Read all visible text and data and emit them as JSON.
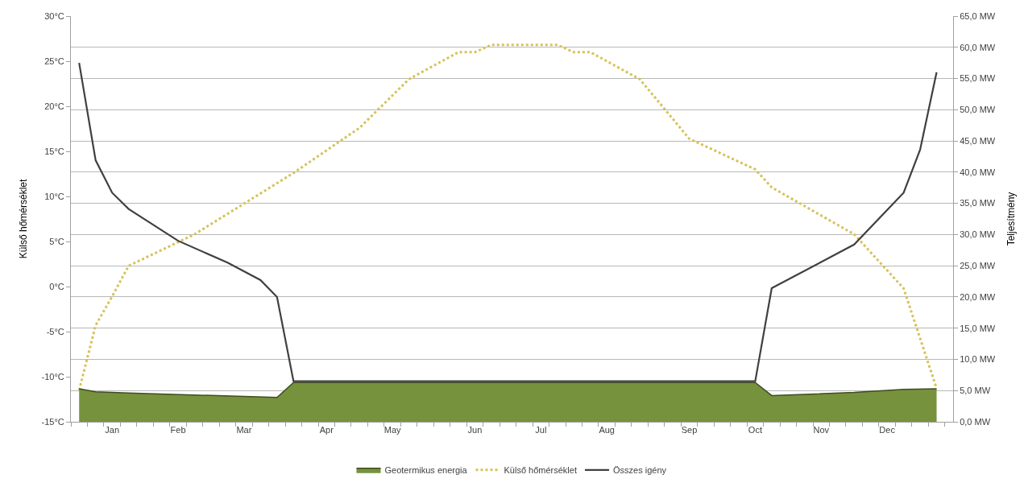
{
  "chart_data": {
    "type": "line",
    "ylabel": "Külső hőmérséklet",
    "y2label": "Teljesítmény",
    "categories": [
      null,
      null,
      "Jan",
      null,
      null,
      null,
      "Feb",
      null,
      null,
      null,
      "Mar",
      null,
      null,
      null,
      null,
      "Apr",
      null,
      null,
      null,
      "May",
      null,
      null,
      null,
      null,
      "Jun",
      null,
      null,
      null,
      "Jul",
      null,
      null,
      null,
      "Aug",
      null,
      null,
      null,
      null,
      "Sep",
      null,
      null,
      null,
      "Oct",
      null,
      null,
      null,
      "Nov",
      null,
      null,
      null,
      "Dec",
      null,
      null,
      null
    ],
    "ylim": [
      -15,
      30
    ],
    "yticks": [
      {
        "value": -15,
        "label": "-15°C"
      },
      {
        "value": -10,
        "label": "-10°C"
      },
      {
        "value": -5,
        "label": "-5°C"
      },
      {
        "value": 0,
        "label": "0°C"
      },
      {
        "value": 5,
        "label": "5°C"
      },
      {
        "value": 10,
        "label": "10°C"
      },
      {
        "value": 15,
        "label": "15°C"
      },
      {
        "value": 20,
        "label": "20°C"
      },
      {
        "value": 25,
        "label": "25°C"
      },
      {
        "value": 30,
        "label": "30°C"
      }
    ],
    "y2lim": [
      0,
      65
    ],
    "y2ticks": [
      {
        "value": 0,
        "label": "0,0 MW"
      },
      {
        "value": 5,
        "label": "5,0 MW"
      },
      {
        "value": 10,
        "label": "10,0 MW"
      },
      {
        "value": 15,
        "label": "15,0 MW"
      },
      {
        "value": 20,
        "label": "20,0 MW"
      },
      {
        "value": 25,
        "label": "25,0 MW"
      },
      {
        "value": 30,
        "label": "30,0 MW"
      },
      {
        "value": 35,
        "label": "35,0 MW"
      },
      {
        "value": 40,
        "label": "40,0 MW"
      },
      {
        "value": 45,
        "label": "45,0 MW"
      },
      {
        "value": 50,
        "label": "50,0 MW"
      },
      {
        "value": 55,
        "label": "55,0 MW"
      },
      {
        "value": 60,
        "label": "60,0 MW"
      },
      {
        "value": 65,
        "label": "65,0 MW"
      }
    ],
    "grid": true,
    "legend": "bottom",
    "marker": "none",
    "series": [
      {
        "name": "Geotermikus energia",
        "type": "area",
        "axis": "y2",
        "color": "#76923c",
        "values": [
          5.3,
          4.8,
          null,
          4.6,
          null,
          null,
          null,
          null,
          null,
          null,
          null,
          null,
          3.9,
          6.3,
          null,
          null,
          null,
          null,
          null,
          null,
          null,
          null,
          null,
          null,
          null,
          null,
          null,
          null,
          null,
          null,
          null,
          null,
          null,
          null,
          null,
          null,
          null,
          null,
          null,
          null,
          null,
          6.3,
          4.2,
          null,
          null,
          null,
          null,
          4.7,
          null,
          null,
          5.2,
          null,
          5.3
        ]
      },
      {
        "name": "Külső hőmérséklet",
        "line_style": "dotted",
        "color": "#d6c25a",
        "values": [
          -11.5,
          -4.3,
          -1.1,
          2.3,
          null,
          null,
          null,
          5.8,
          null,
          null,
          9.2,
          null,
          null,
          12.6,
          null,
          null,
          null,
          17.6,
          null,
          null,
          23.0,
          null,
          null,
          26.0,
          26.0,
          26.8,
          null,
          null,
          null,
          26.8,
          26.0,
          26.0,
          null,
          null,
          23.0,
          null,
          null,
          16.4,
          null,
          null,
          null,
          13.0,
          11.0,
          null,
          null,
          null,
          null,
          5.8,
          null,
          null,
          -0.2,
          null,
          -11.3
        ]
      },
      {
        "name": "Összes igény",
        "axis": "y2",
        "line_style": "solid",
        "color": "#404040",
        "values": [
          57.5,
          41.9,
          36.7,
          34.1,
          null,
          null,
          29.0,
          null,
          null,
          25.5,
          null,
          22.7,
          20.0,
          6.5,
          null,
          null,
          null,
          null,
          null,
          null,
          null,
          null,
          null,
          null,
          null,
          null,
          null,
          null,
          null,
          null,
          null,
          null,
          null,
          null,
          null,
          null,
          null,
          null,
          null,
          null,
          null,
          6.5,
          21.4,
          null,
          null,
          null,
          null,
          28.4,
          null,
          null,
          36.7,
          43.6,
          56.0
        ]
      }
    ]
  }
}
